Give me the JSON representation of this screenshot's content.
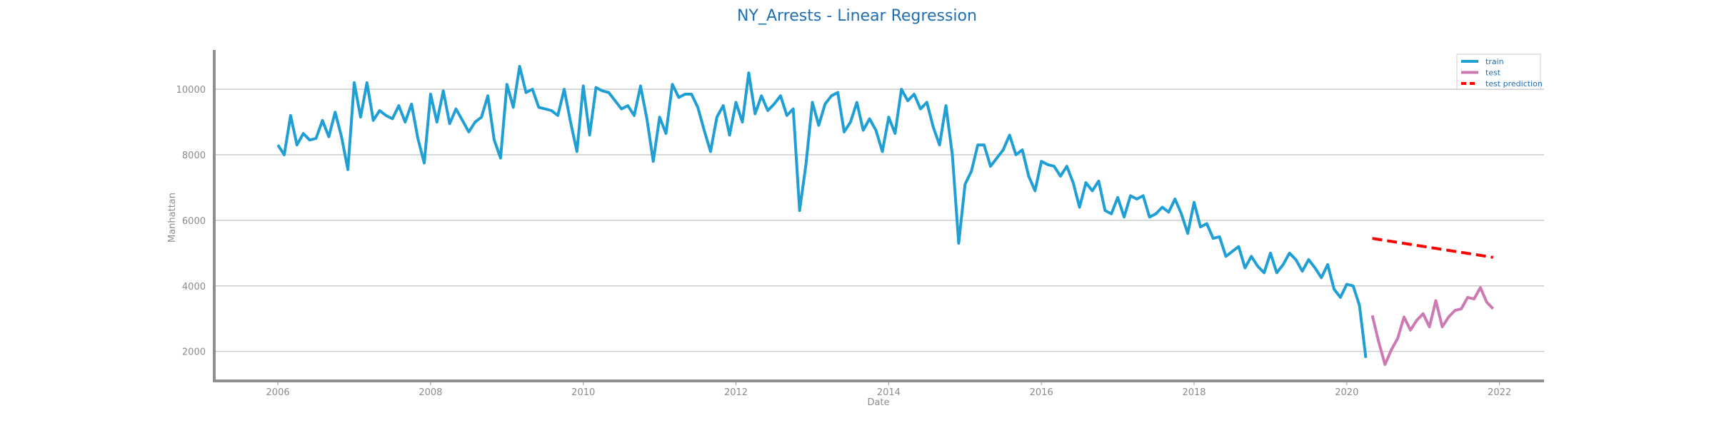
{
  "chart_data": {
    "type": "line",
    "title": "NY_Arrests - Linear Regression",
    "xlabel": "Date",
    "ylabel": "Manhattan",
    "xlim": [
      "2005-03-01",
      "2022-08-01"
    ],
    "ylim": [
      1100,
      11200
    ],
    "x_ticks": [
      "2006",
      "2008",
      "2010",
      "2012",
      "2014",
      "2016",
      "2018",
      "2020",
      "2022"
    ],
    "y_ticks": [
      2000,
      4000,
      6000,
      8000,
      10000
    ],
    "grid": "horizontal",
    "legend": "top-right",
    "series": [
      {
        "name": "train",
        "color": "#1f9fd4",
        "dash": "solid",
        "x": [
          "2006-01",
          "2006-02",
          "2006-03",
          "2006-04",
          "2006-05",
          "2006-06",
          "2006-07",
          "2006-08",
          "2006-09",
          "2006-10",
          "2006-11",
          "2006-12",
          "2007-01",
          "2007-02",
          "2007-03",
          "2007-04",
          "2007-05",
          "2007-06",
          "2007-07",
          "2007-08",
          "2007-09",
          "2007-10",
          "2007-11",
          "2007-12",
          "2008-01",
          "2008-02",
          "2008-03",
          "2008-04",
          "2008-05",
          "2008-06",
          "2008-07",
          "2008-08",
          "2008-09",
          "2008-10",
          "2008-11",
          "2008-12",
          "2009-01",
          "2009-02",
          "2009-03",
          "2009-04",
          "2009-05",
          "2009-06",
          "2009-07",
          "2009-08",
          "2009-09",
          "2009-10",
          "2009-11",
          "2009-12",
          "2010-01",
          "2010-02",
          "2010-03",
          "2010-04",
          "2010-05",
          "2010-06",
          "2010-07",
          "2010-08",
          "2010-09",
          "2010-10",
          "2010-11",
          "2010-12",
          "2011-01",
          "2011-02",
          "2011-03",
          "2011-04",
          "2011-05",
          "2011-06",
          "2011-07",
          "2011-08",
          "2011-09",
          "2011-10",
          "2011-11",
          "2011-12",
          "2012-01",
          "2012-02",
          "2012-03",
          "2012-04",
          "2012-05",
          "2012-06",
          "2012-07",
          "2012-08",
          "2012-09",
          "2012-10",
          "2012-11",
          "2012-12",
          "2013-01",
          "2013-02",
          "2013-03",
          "2013-04",
          "2013-05",
          "2013-06",
          "2013-07",
          "2013-08",
          "2013-09",
          "2013-10",
          "2013-11",
          "2013-12",
          "2014-01",
          "2014-02",
          "2014-03",
          "2014-04",
          "2014-05",
          "2014-06",
          "2014-07",
          "2014-08",
          "2014-09",
          "2014-10",
          "2014-11",
          "2014-12",
          "2015-01",
          "2015-02",
          "2015-03",
          "2015-04",
          "2015-05",
          "2015-06",
          "2015-07",
          "2015-08",
          "2015-09",
          "2015-10",
          "2015-11",
          "2015-12",
          "2016-01",
          "2016-02",
          "2016-03",
          "2016-04",
          "2016-05",
          "2016-06",
          "2016-07",
          "2016-08",
          "2016-09",
          "2016-10",
          "2016-11",
          "2016-12",
          "2017-01",
          "2017-02",
          "2017-03",
          "2017-04",
          "2017-05",
          "2017-06",
          "2017-07",
          "2017-08",
          "2017-09",
          "2017-10",
          "2017-11",
          "2017-12",
          "2018-01",
          "2018-02",
          "2018-03",
          "2018-04",
          "2018-05",
          "2018-06",
          "2018-07",
          "2018-08",
          "2018-09",
          "2018-10",
          "2018-11",
          "2018-12",
          "2019-01",
          "2019-02",
          "2019-03",
          "2019-04",
          "2019-05",
          "2019-06",
          "2019-07",
          "2019-08",
          "2019-09",
          "2019-10",
          "2019-11",
          "2019-12",
          "2020-01",
          "2020-02",
          "2020-03",
          "2020-04"
        ],
        "y": [
          8300,
          8000,
          9200,
          8300,
          8650,
          8450,
          8500,
          9050,
          8550,
          9300,
          8550,
          7550,
          10200,
          9150,
          10200,
          9050,
          9350,
          9200,
          9100,
          9500,
          9000,
          9550,
          8500,
          7750,
          9850,
          9000,
          9950,
          8950,
          9400,
          9050,
          8700,
          9000,
          9150,
          9800,
          8450,
          7900,
          10150,
          9450,
          10700,
          9900,
          10000,
          9450,
          9400,
          9350,
          9200,
          10000,
          9000,
          8100,
          10100,
          8600,
          10050,
          9950,
          9900,
          9650,
          9400,
          9500,
          9200,
          10100,
          9100,
          7800,
          9150,
          8650,
          10150,
          9750,
          9850,
          9850,
          9450,
          8750,
          8100,
          9150,
          9500,
          8600,
          9600,
          9000,
          10500,
          9250,
          9800,
          9350,
          9550,
          9800,
          9200,
          9400,
          6300,
          7700,
          9600,
          8900,
          9550,
          9800,
          9900,
          8700,
          9000,
          9600,
          8750,
          9100,
          8750,
          8100,
          9150,
          8650,
          10000,
          9650,
          9850,
          9400,
          9600,
          8850,
          8300,
          9500,
          8000,
          5300,
          7100,
          7500,
          8300,
          8300,
          7650,
          7900,
          8150,
          8600,
          8000,
          8150,
          7350,
          6900,
          7800,
          7700,
          7650,
          7350,
          7650,
          7150,
          6400,
          7150,
          6900,
          7200,
          6300,
          6200,
          6700,
          6100,
          6750,
          6650,
          6750,
          6100,
          6200,
          6400,
          6250,
          6650,
          6200,
          5600,
          6550,
          5800,
          5900,
          5450,
          5500,
          4900,
          5050,
          5200,
          4550,
          4900,
          4600,
          4400,
          5000,
          4400,
          4650,
          5000,
          4800,
          4450,
          4800,
          4550,
          4250,
          4650,
          3900,
          3650,
          4050,
          4000,
          3400,
          1800
        ]
      },
      {
        "name": "test",
        "color": "#cc79b4",
        "dash": "solid",
        "x": [
          "2020-05",
          "2020-06",
          "2020-07",
          "2020-08",
          "2020-09",
          "2020-10",
          "2020-11",
          "2020-12",
          "2021-01",
          "2021-02",
          "2021-03",
          "2021-04",
          "2021-05",
          "2021-06",
          "2021-07",
          "2021-08",
          "2021-09",
          "2021-10",
          "2021-11",
          "2021-12"
        ],
        "y": [
          3100,
          2300,
          1600,
          2050,
          2400,
          3050,
          2650,
          2950,
          3150,
          2750,
          3550,
          2750,
          3050,
          3250,
          3300,
          3650,
          3600,
          3950,
          3500,
          3300
        ]
      },
      {
        "name": "test prediction",
        "color": "#ff0000",
        "dash": "dashed",
        "x": [
          "2020-05",
          "2021-12"
        ],
        "y": [
          5450,
          4870
        ]
      }
    ]
  }
}
